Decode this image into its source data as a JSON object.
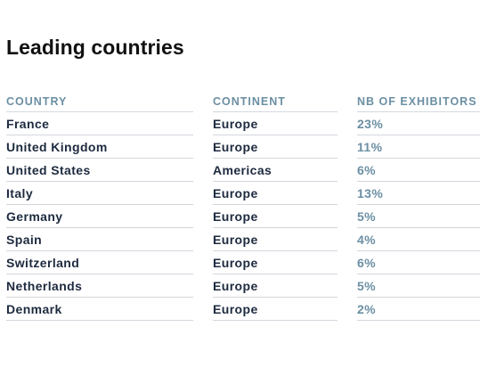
{
  "title": "Leading countries",
  "columns": {
    "country": "COUNTRY",
    "continent": "CONTINENT",
    "exhibitors": "NB OF EXHIBITORS"
  },
  "rows": [
    {
      "country": "France",
      "continent": "Europe",
      "exhibitors": "23%"
    },
    {
      "country": "United Kingdom",
      "continent": "Europe",
      "exhibitors": "11%"
    },
    {
      "country": "United States",
      "continent": "Americas",
      "exhibitors": "6%"
    },
    {
      "country": "Italy",
      "continent": "Europe",
      "exhibitors": "13%"
    },
    {
      "country": "Germany",
      "continent": "Europe",
      "exhibitors": "5%"
    },
    {
      "country": "Spain",
      "continent": "Europe",
      "exhibitors": "4%"
    },
    {
      "country": "Switzerland",
      "continent": "Europe",
      "exhibitors": "6%"
    },
    {
      "country": "Netherlands",
      "continent": "Europe",
      "exhibitors": "5%"
    },
    {
      "country": "Denmark",
      "continent": "Europe",
      "exhibitors": "2%"
    }
  ],
  "colors": {
    "heading": "#111111",
    "header_text": "#6b8fa3",
    "cell_text": "#1d2a3f",
    "percent_text": "#6b8fa3",
    "divider": "#d2d7dc"
  }
}
